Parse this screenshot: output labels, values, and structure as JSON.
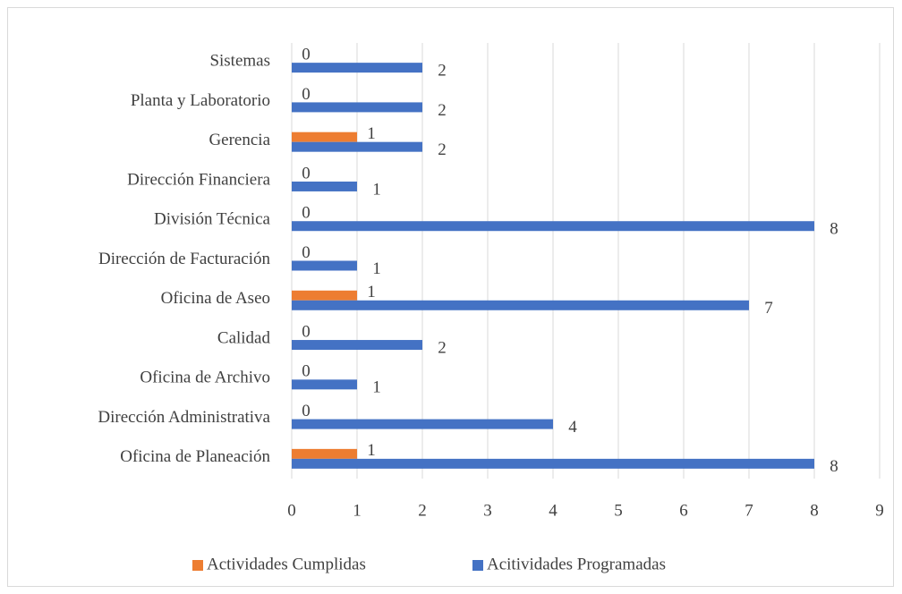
{
  "chart_data": {
    "type": "barh",
    "categories": [
      "Oficina de Planeación",
      "Dirección Administrativa",
      "Oficina de Archivo",
      "Calidad",
      "Oficina de Aseo",
      "Dirección de Facturación",
      "División Técnica",
      "Dirección Financiera",
      "Gerencia",
      "Planta y Laboratorio",
      "Sistemas"
    ],
    "series": [
      {
        "name": "Actividades Cumplidas",
        "color": "#ed7d31",
        "values": [
          1,
          0,
          0,
          0,
          1,
          0,
          0,
          0,
          1,
          0,
          0
        ]
      },
      {
        "name": "Acitividades Programadas",
        "color": "#4472c4",
        "values": [
          8,
          4,
          1,
          2,
          7,
          1,
          8,
          1,
          2,
          2,
          2
        ]
      }
    ],
    "xlim": [
      0,
      9
    ],
    "xticks": [
      0,
      1,
      2,
      3,
      4,
      5,
      6,
      7,
      8,
      9
    ],
    "grid": true,
    "legend": "bottom"
  }
}
